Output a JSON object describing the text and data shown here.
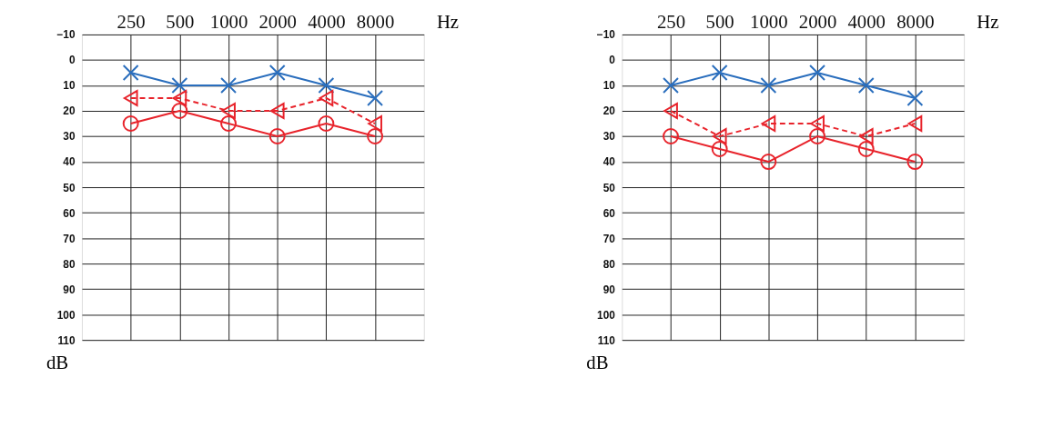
{
  "chart_data": [
    {
      "type": "line",
      "categories": [
        "250",
        "500",
        "1000",
        "2000",
        "4000",
        "8000"
      ],
      "xlabel": "Hz",
      "ylabel": "dB",
      "ylim": [
        110,
        -10
      ],
      "yticks": [
        -10,
        0,
        10,
        20,
        30,
        40,
        50,
        60,
        70,
        80,
        90,
        100,
        110
      ],
      "grid": true,
      "series": [
        {
          "color": "#2a6ebd",
          "values": [
            5,
            10,
            10,
            5,
            10,
            15
          ],
          "marker": "cross",
          "line_style": "solid"
        },
        {
          "color": "#e8232b",
          "values": [
            25,
            20,
            25,
            30,
            25,
            30
          ],
          "marker": "circle",
          "line_style": "solid"
        },
        {
          "color": "#e8232b",
          "values": [
            15,
            15,
            20,
            20,
            15,
            25
          ],
          "marker": "triangle",
          "line_style": "dashed"
        }
      ]
    },
    {
      "type": "line",
      "categories": [
        "250",
        "500",
        "1000",
        "2000",
        "4000",
        "8000"
      ],
      "xlabel": "Hz",
      "ylabel": "dB",
      "ylim": [
        110,
        -10
      ],
      "yticks": [
        -10,
        0,
        10,
        20,
        30,
        40,
        50,
        60,
        70,
        80,
        90,
        100,
        110
      ],
      "grid": true,
      "series": [
        {
          "color": "#2a6ebd",
          "values": [
            10,
            5,
            10,
            5,
            10,
            15
          ],
          "marker": "cross",
          "line_style": "solid"
        },
        {
          "color": "#e8232b",
          "values": [
            30,
            35,
            40,
            30,
            35,
            40
          ],
          "marker": "circle",
          "line_style": "solid"
        },
        {
          "color": "#e8232b",
          "values": [
            20,
            30,
            25,
            25,
            30,
            25
          ],
          "marker": "triangle",
          "line_style": "dashed"
        }
      ]
    }
  ]
}
